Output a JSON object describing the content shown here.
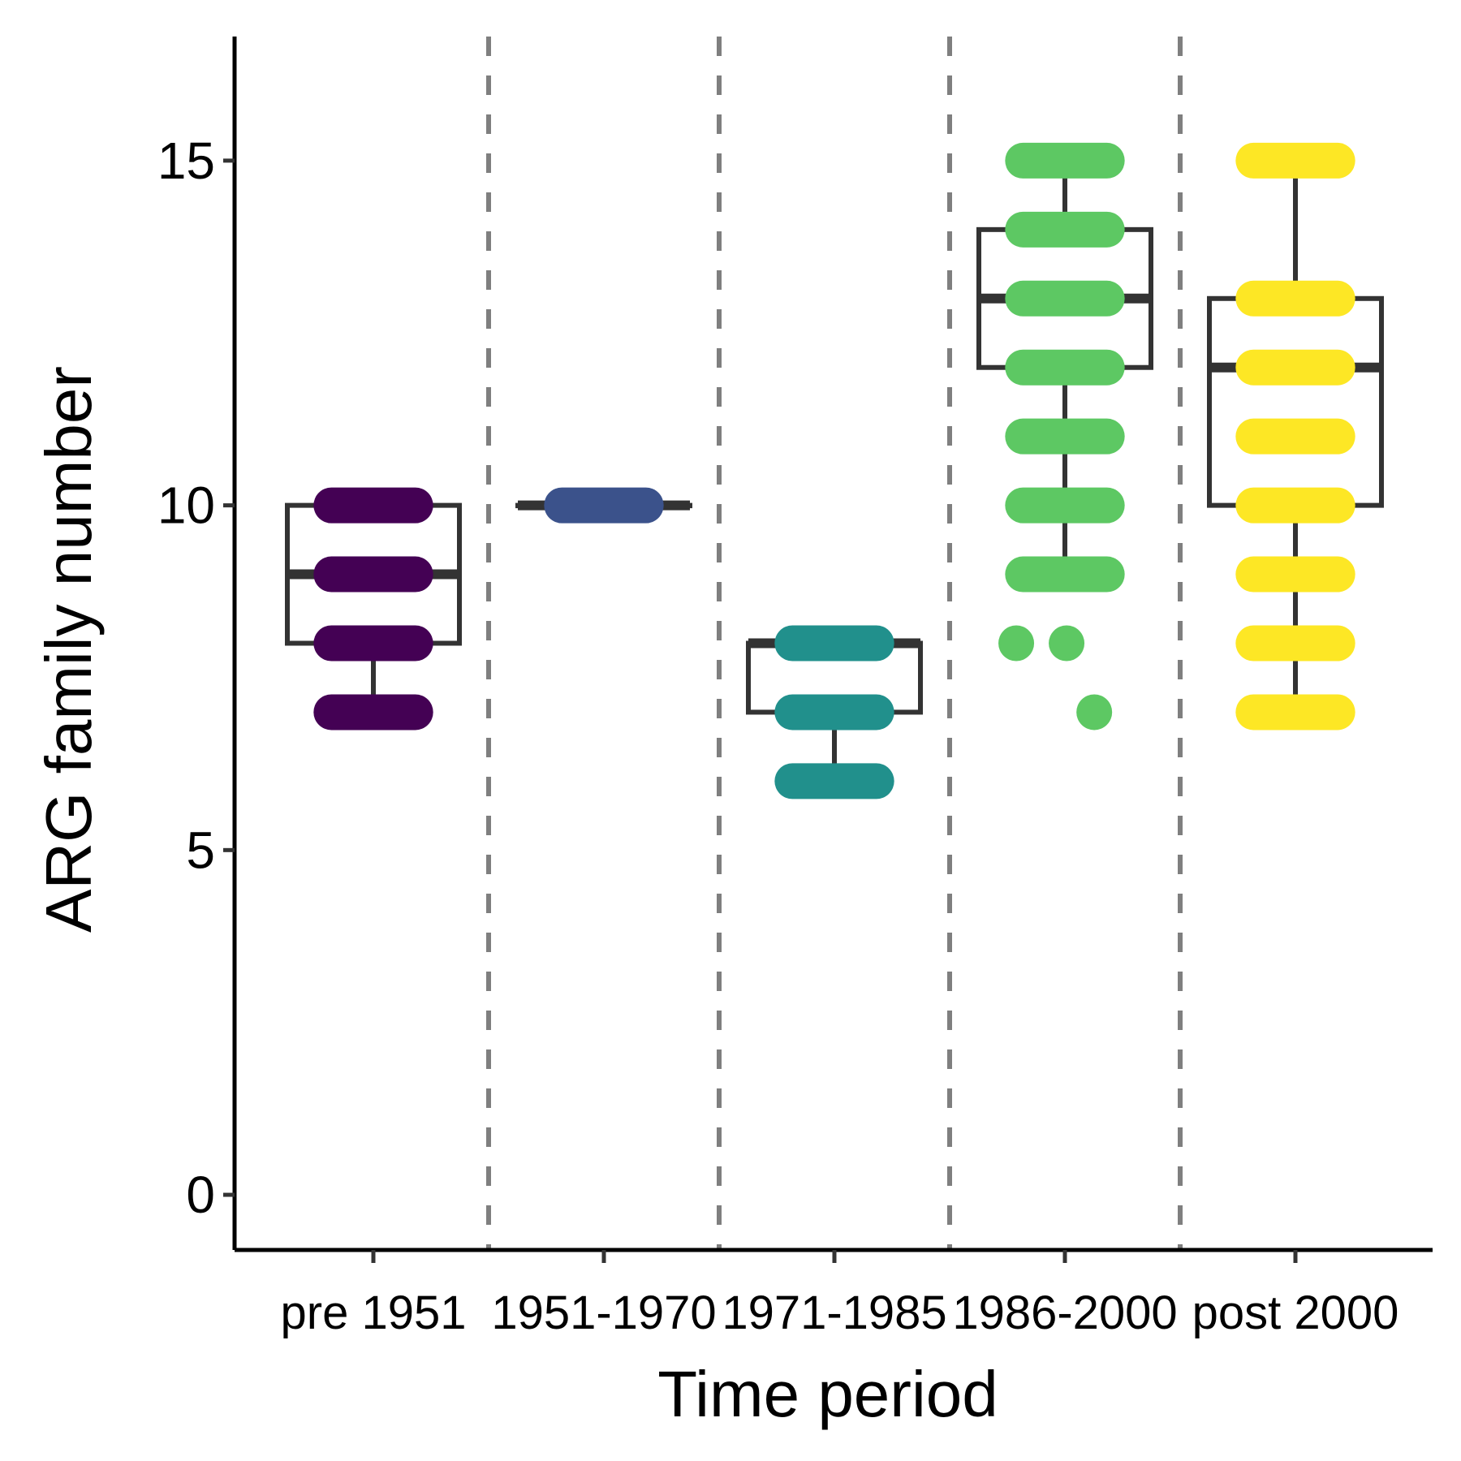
{
  "chart_data": {
    "type": "box",
    "title": "",
    "xlabel": "Time period",
    "ylabel": "ARG family number",
    "ylim": [
      -0.8,
      16.8
    ],
    "yticks": [
      0,
      5,
      10,
      15
    ],
    "legend": "none",
    "grid": false,
    "separators": "dashed vertical lines between categories",
    "categories": [
      "pre 1951",
      "1951-1970",
      "1971-1985",
      "1986-2000",
      "post 2000"
    ],
    "boxes": [
      {
        "category": "pre 1951",
        "color": "#440154",
        "min": 7,
        "q1": 8,
        "median": 9,
        "q3": 10,
        "max": 10,
        "outliers": []
      },
      {
        "category": "1951-1970",
        "color": "#3B528B",
        "min": 10,
        "q1": 10,
        "median": 10,
        "q3": 10,
        "max": 10,
        "outliers": []
      },
      {
        "category": "1971-1985",
        "color": "#21908C",
        "min": 6,
        "q1": 7,
        "median": 8,
        "q3": 8,
        "max": 8,
        "outliers": []
      },
      {
        "category": "1986-2000",
        "color": "#5DC863",
        "min": 9,
        "q1": 12,
        "median": 13,
        "q3": 14,
        "max": 15,
        "outliers": [
          8,
          8,
          7
        ]
      },
      {
        "category": "post 2000",
        "color": "#FDE725",
        "min": 7,
        "q1": 10,
        "median": 12,
        "q3": 13,
        "max": 15,
        "outliers": []
      }
    ],
    "points": [
      {
        "category": "pre 1951",
        "y": 10,
        "spread": [
          -0.5,
          0.5
        ]
      },
      {
        "category": "pre 1951",
        "y": 9,
        "spread": [
          -0.5,
          0.5
        ]
      },
      {
        "category": "pre 1951",
        "y": 8,
        "spread": [
          -0.5,
          0.5
        ]
      },
      {
        "category": "pre 1951",
        "y": 7,
        "spread": [
          -0.5,
          0.5
        ]
      },
      {
        "category": "1951-1970",
        "y": 10,
        "spread": [
          -0.5,
          0.5
        ]
      },
      {
        "category": "1971-1985",
        "y": 8,
        "spread": [
          -0.5,
          0.5
        ]
      },
      {
        "category": "1971-1985",
        "y": 7,
        "spread": [
          -0.5,
          0.5
        ]
      },
      {
        "category": "1971-1985",
        "y": 6,
        "spread": [
          -0.5,
          0.5
        ]
      },
      {
        "category": "1986-2000",
        "y": 15,
        "spread": [
          -0.5,
          0.5
        ]
      },
      {
        "category": "1986-2000",
        "y": 14,
        "spread": [
          -0.5,
          0.5
        ]
      },
      {
        "category": "1986-2000",
        "y": 13,
        "spread": [
          -0.5,
          0.5
        ]
      },
      {
        "category": "1986-2000",
        "y": 12,
        "spread": [
          -0.5,
          0.5
        ]
      },
      {
        "category": "1986-2000",
        "y": 11,
        "spread": [
          -0.5,
          0.5
        ]
      },
      {
        "category": "1986-2000",
        "y": 10,
        "spread": [
          -0.5,
          0.5
        ]
      },
      {
        "category": "1986-2000",
        "y": 9,
        "spread": [
          -0.5,
          0.5
        ]
      },
      {
        "category": "1986-2000",
        "y": 8,
        "spread": [
          -0.58,
          -0.58
        ]
      },
      {
        "category": "1986-2000",
        "y": 8,
        "spread": [
          0.02,
          0.02
        ]
      },
      {
        "category": "1986-2000",
        "y": 7,
        "spread": [
          0.35,
          0.35
        ]
      },
      {
        "category": "post 2000",
        "y": 15,
        "spread": [
          -0.5,
          0.5
        ]
      },
      {
        "category": "post 2000",
        "y": 13,
        "spread": [
          -0.5,
          0.5
        ]
      },
      {
        "category": "post 2000",
        "y": 12,
        "spread": [
          -0.5,
          0.5
        ]
      },
      {
        "category": "post 2000",
        "y": 11,
        "spread": [
          -0.5,
          0.5
        ]
      },
      {
        "category": "post 2000",
        "y": 10,
        "spread": [
          -0.5,
          0.5
        ]
      },
      {
        "category": "post 2000",
        "y": 9,
        "spread": [
          -0.5,
          0.5
        ]
      },
      {
        "category": "post 2000",
        "y": 8,
        "spread": [
          -0.5,
          0.5
        ]
      },
      {
        "category": "post 2000",
        "y": 7,
        "spread": [
          -0.5,
          0.5
        ]
      }
    ]
  }
}
